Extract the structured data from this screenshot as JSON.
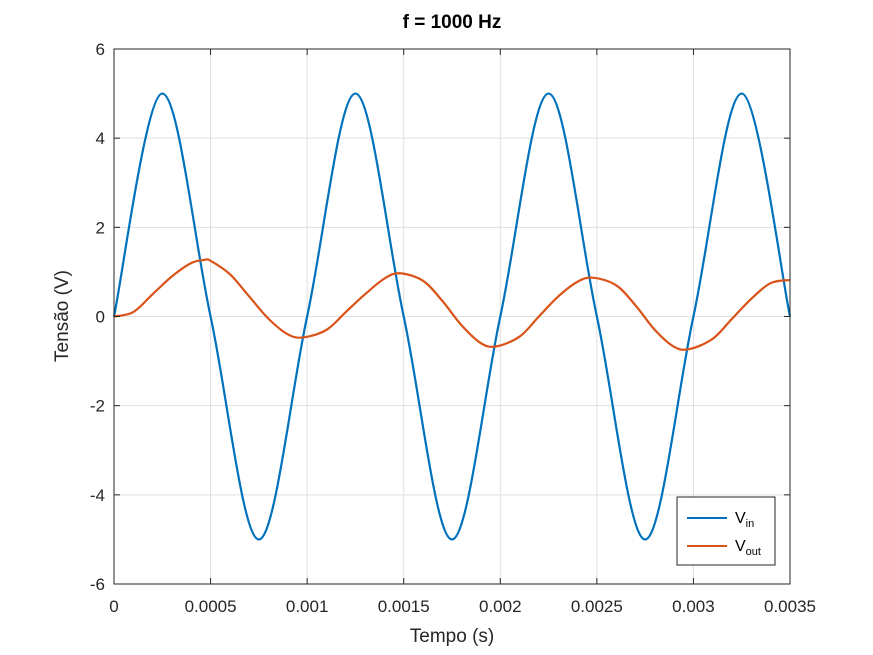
{
  "chart_data": {
    "type": "line",
    "title": "f = 1000 Hz",
    "xlabel": "Tempo (s)",
    "ylabel": "Tensão (V)",
    "xlim": [
      0,
      0.0035
    ],
    "ylim": [
      -6,
      6
    ],
    "xticks": [
      0,
      0.0005,
      0.001,
      0.0015,
      0.002,
      0.0025,
      0.003,
      0.0035
    ],
    "xtick_labels": [
      "0",
      "0.0005",
      "0.001",
      "0.0015",
      "0.002",
      "0.0025",
      "0.003",
      "0.0035"
    ],
    "yticks": [
      -6,
      -4,
      -2,
      0,
      2,
      4,
      6
    ],
    "ytick_labels": [
      "-6",
      "-4",
      "-2",
      "0",
      "2",
      "4",
      "6"
    ],
    "grid": true,
    "legend_position": "bottom-right",
    "series": [
      {
        "name_main": "V",
        "name_sub": "in",
        "color": "#0072BD",
        "x": [
          0,
          0.00025,
          0.0005,
          0.00075,
          0.001,
          0.00125,
          0.0015,
          0.00175,
          0.002,
          0.00225,
          0.0025,
          0.00275,
          0.003,
          0.00325,
          0.0035
        ],
        "y": [
          0,
          5,
          0,
          -5,
          0,
          5,
          0,
          -5,
          0,
          5,
          0,
          -5,
          0,
          5,
          0
        ]
      },
      {
        "name_main": "V",
        "name_sub": "out",
        "color": "#D95319",
        "x": [
          0,
          0.0001,
          0.0002,
          0.0003,
          0.0004,
          0.00047,
          0.0005,
          0.0006,
          0.0007,
          0.0008,
          0.0009,
          0.00098,
          0.0011,
          0.0012,
          0.0013,
          0.0014,
          0.00148,
          0.0016,
          0.0017,
          0.0018,
          0.0019,
          0.00198,
          0.0021,
          0.0022,
          0.0023,
          0.0024,
          0.00248,
          0.0026,
          0.0027,
          0.0028,
          0.0029,
          0.00298,
          0.0031,
          0.0032,
          0.0033,
          0.0034,
          0.0035
        ],
        "y": [
          0,
          0.1,
          0.5,
          0.9,
          1.2,
          1.27,
          1.25,
          0.95,
          0.45,
          -0.05,
          -0.4,
          -0.47,
          -0.3,
          0.1,
          0.5,
          0.85,
          0.97,
          0.8,
          0.35,
          -0.2,
          -0.6,
          -0.67,
          -0.45,
          0,
          0.45,
          0.78,
          0.87,
          0.7,
          0.25,
          -0.3,
          -0.68,
          -0.73,
          -0.5,
          -0.05,
          0.4,
          0.75,
          0.82
        ]
      }
    ]
  }
}
